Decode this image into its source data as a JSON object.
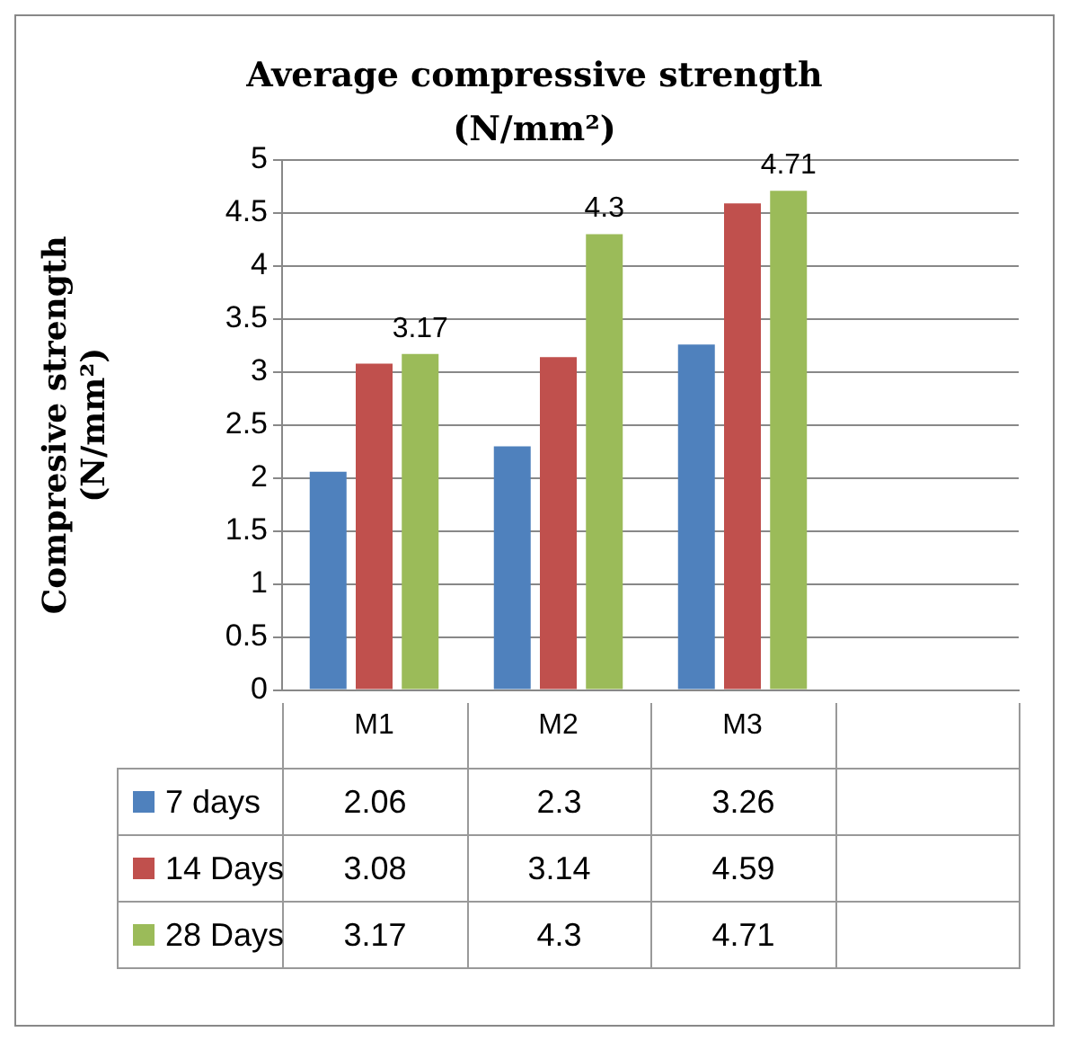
{
  "chart_data": {
    "type": "bar",
    "title": "Average compressive strength (N/mm²)",
    "ylabel": "Compresive strength (N/mm²)",
    "categories": [
      "M1",
      "M2",
      "M3",
      null
    ],
    "series": [
      {
        "name": "7 days",
        "color": "#4f81bd",
        "values": [
          2.06,
          2.3,
          3.26,
          null
        ]
      },
      {
        "name": "14 Days",
        "color": "#c0504d",
        "values": [
          3.08,
          3.14,
          4.59,
          null
        ]
      },
      {
        "name": "28 Days",
        "color": "#9bbb59",
        "values": [
          3.17,
          4.3,
          4.71,
          null
        ]
      }
    ],
    "annotations": [
      "3.17",
      "4.3",
      "4.71"
    ],
    "ylim": [
      0,
      5
    ],
    "yticks": [
      0,
      0.5,
      1,
      1.5,
      2,
      2.5,
      3,
      3.5,
      4,
      4.5,
      5
    ],
    "grid": "y",
    "legend": "bottom",
    "data_labels": true
  }
}
